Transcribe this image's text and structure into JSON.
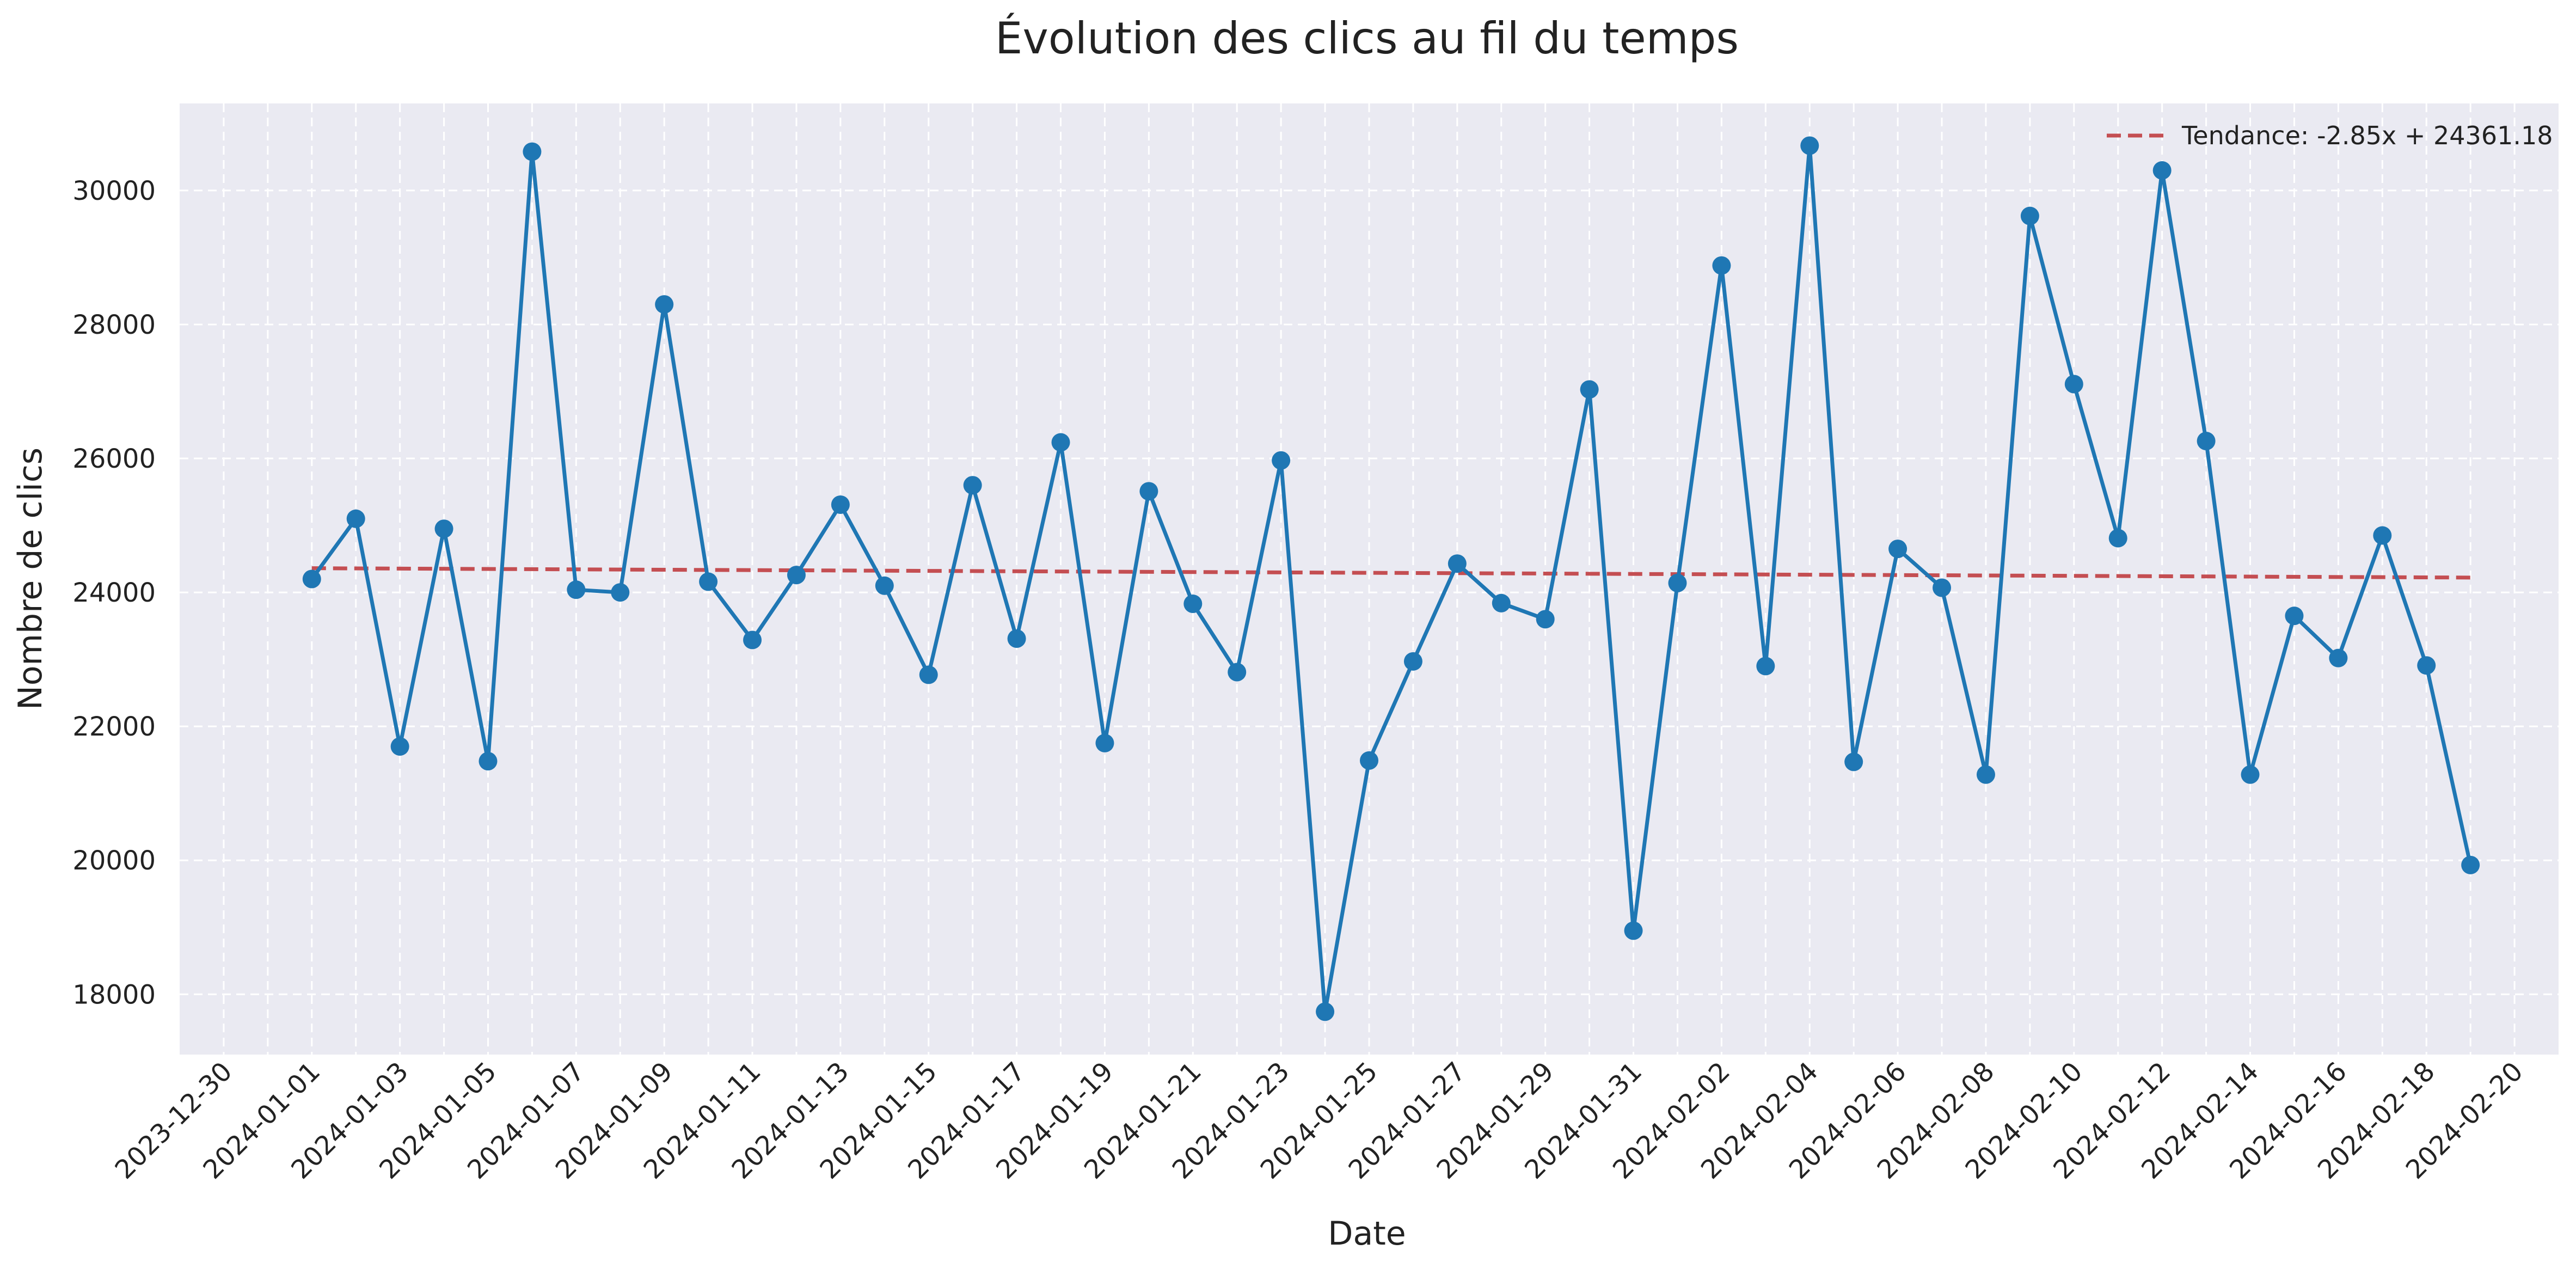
{
  "chart_data": {
    "type": "line",
    "title": "Évolution des clics au fil du temps",
    "xlabel": "Date",
    "ylabel": "Nombre de clics",
    "xlim": [
      "2023-12-29",
      "2024-02-21"
    ],
    "ylim": [
      17100,
      31300
    ],
    "x_ticks": [
      "2023-12-30",
      "2024-01-01",
      "2024-01-03",
      "2024-01-05",
      "2024-01-07",
      "2024-01-09",
      "2024-01-11",
      "2024-01-13",
      "2024-01-15",
      "2024-01-17",
      "2024-01-19",
      "2024-01-21",
      "2024-01-23",
      "2024-01-25",
      "2024-01-27",
      "2024-01-29",
      "2024-01-31",
      "2024-02-02",
      "2024-02-04",
      "2024-02-06",
      "2024-02-08",
      "2024-02-10",
      "2024-02-12",
      "2024-02-14",
      "2024-02-16",
      "2024-02-18",
      "2024-02-20"
    ],
    "y_ticks": [
      18000,
      20000,
      22000,
      24000,
      26000,
      28000,
      30000
    ],
    "grid": true,
    "legend_position": "top-right",
    "background_color": "#eaeaf2",
    "series": [
      {
        "type": "line",
        "color": "#1f77b4",
        "marker": "circle",
        "x": [
          "2024-01-01",
          "2024-01-02",
          "2024-01-03",
          "2024-01-04",
          "2024-01-05",
          "2024-01-06",
          "2024-01-07",
          "2024-01-08",
          "2024-01-09",
          "2024-01-10",
          "2024-01-11",
          "2024-01-12",
          "2024-01-13",
          "2024-01-14",
          "2024-01-15",
          "2024-01-16",
          "2024-01-17",
          "2024-01-18",
          "2024-01-19",
          "2024-01-20",
          "2024-01-21",
          "2024-01-22",
          "2024-01-23",
          "2024-01-24",
          "2024-01-25",
          "2024-01-26",
          "2024-01-27",
          "2024-01-28",
          "2024-01-29",
          "2024-01-30",
          "2024-01-31",
          "2024-02-01",
          "2024-02-02",
          "2024-02-03",
          "2024-02-04",
          "2024-02-05",
          "2024-02-06",
          "2024-02-07",
          "2024-02-08",
          "2024-02-09",
          "2024-02-10",
          "2024-02-11",
          "2024-02-12",
          "2024-02-13",
          "2024-02-14",
          "2024-02-15",
          "2024-02-16",
          "2024-02-17",
          "2024-02-18",
          "2024-02-19"
        ],
        "values": [
          24200,
          25100,
          21700,
          24950,
          21480,
          30580,
          24040,
          24000,
          28300,
          24160,
          23290,
          24260,
          25310,
          24100,
          22770,
          25600,
          23310,
          26240,
          21750,
          25510,
          23830,
          22810,
          25970,
          17740,
          21490,
          22970,
          24430,
          23840,
          23600,
          27030,
          18950,
          24140,
          28880,
          22900,
          30670,
          21470,
          24650,
          24070,
          21280,
          29620,
          27110,
          24810,
          30300,
          26260,
          21280,
          23650,
          23020,
          24850,
          22910,
          19930
        ]
      },
      {
        "name": "Tendance: -2.85x + 24361.18",
        "type": "line",
        "style": "dashed",
        "color": "#c44e52",
        "x": [
          "2024-01-01",
          "2024-02-19"
        ],
        "values": [
          24361.18,
          24221.53
        ]
      }
    ]
  }
}
